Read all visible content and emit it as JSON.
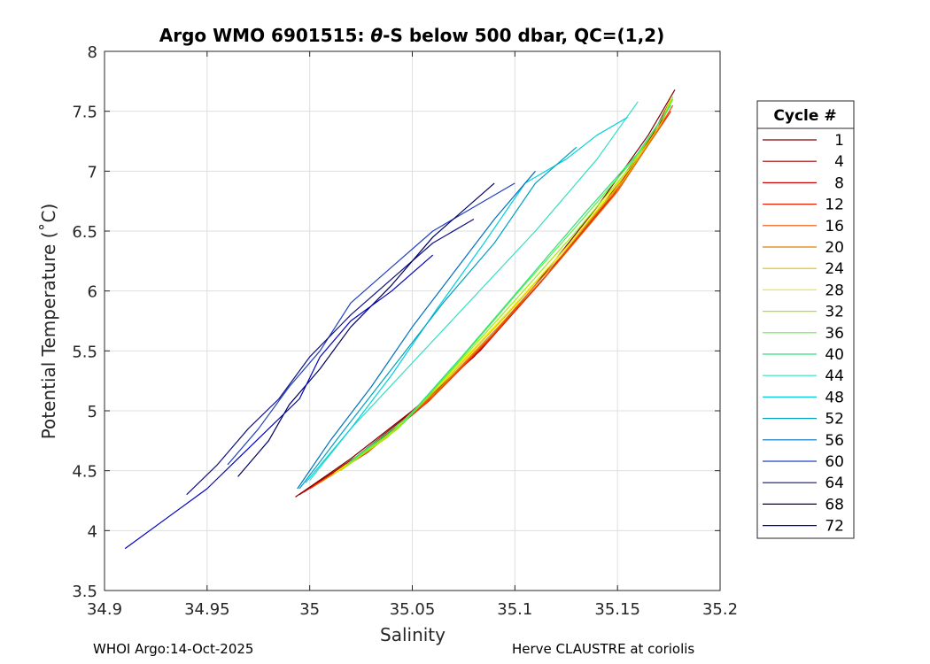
{
  "chart_data": {
    "type": "line",
    "title_prefix": "Argo WMO 6901515: ",
    "title_theta": "θ",
    "title_suffix": "-S below 500 dbar,  QC=(1,2)",
    "xlabel": "Salinity",
    "ylabel": "Potential Temperature (˚C)",
    "xlim": [
      34.9,
      35.2
    ],
    "ylim": [
      3.5,
      8
    ],
    "xticks": [
      34.9,
      34.95,
      35,
      35.05,
      35.1,
      35.15,
      35.2
    ],
    "xtick_labels": [
      "34.9",
      "34.95",
      "35",
      "35.05",
      "35.1",
      "35.15",
      "35.2"
    ],
    "yticks": [
      3.5,
      4,
      4.5,
      5,
      5.5,
      6,
      6.5,
      7,
      7.5,
      8
    ],
    "ytick_labels": [
      "3.5",
      "4",
      "4.5",
      "5",
      "5.5",
      "6",
      "6.5",
      "7",
      "7.5",
      "8"
    ],
    "grid": true,
    "legend_title": "Cycle #",
    "legend_placement": "outside-right",
    "legend": [
      {
        "label": "1",
        "color": "#800000"
      },
      {
        "label": "4",
        "color": "#a00000"
      },
      {
        "label": "8",
        "color": "#cc0000"
      },
      {
        "label": "12",
        "color": "#ee2200"
      },
      {
        "label": "16",
        "color": "#ee5500"
      },
      {
        "label": "20",
        "color": "#e08000"
      },
      {
        "label": "24",
        "color": "#e0c000"
      },
      {
        "label": "28",
        "color": "#f0f000"
      },
      {
        "label": "32",
        "color": "#a0f000"
      },
      {
        "label": "36",
        "color": "#60f040"
      },
      {
        "label": "40",
        "color": "#30e080"
      },
      {
        "label": "44",
        "color": "#30e0c0"
      },
      {
        "label": "48",
        "color": "#00d0e0"
      },
      {
        "label": "52",
        "color": "#00a0c0"
      },
      {
        "label": "56",
        "color": "#0070c0"
      },
      {
        "label": "60",
        "color": "#2040c0"
      },
      {
        "label": "64",
        "color": "#101080"
      },
      {
        "label": "68",
        "color": "#000060"
      },
      {
        "label": "72",
        "color": "#0000c0"
      }
    ],
    "series": [
      {
        "color": "#800000",
        "x": [
          34.993,
          35.02,
          35.05,
          35.08,
          35.11,
          35.14,
          35.165,
          35.178
        ],
        "y": [
          4.28,
          4.6,
          5.0,
          5.45,
          6.05,
          6.7,
          7.3,
          7.68
        ]
      },
      {
        "color": "#a00000",
        "x": [
          34.995,
          35.023,
          35.052,
          35.083,
          35.113,
          35.143,
          35.167,
          35.176
        ],
        "y": [
          4.3,
          4.62,
          5.02,
          5.5,
          6.08,
          6.72,
          7.3,
          7.6
        ]
      },
      {
        "color": "#cc0000",
        "x": [
          34.997,
          35.025,
          35.055,
          35.085,
          35.115,
          35.145,
          35.168,
          35.175
        ],
        "y": [
          4.32,
          4.63,
          5.05,
          5.55,
          6.12,
          6.75,
          7.3,
          7.55
        ]
      },
      {
        "color": "#ee2200",
        "x": [
          35.0,
          35.028,
          35.058,
          35.088,
          35.118,
          35.148,
          35.169,
          35.176
        ],
        "y": [
          4.35,
          4.65,
          5.08,
          5.6,
          6.18,
          6.8,
          7.32,
          7.5
        ]
      },
      {
        "color": "#ee5500",
        "x": [
          35.002,
          35.03,
          35.06,
          35.09,
          35.12,
          35.15,
          35.17,
          35.177
        ],
        "y": [
          4.37,
          4.68,
          5.12,
          5.65,
          6.22,
          6.83,
          7.35,
          7.55
        ]
      },
      {
        "color": "#e08000",
        "x": [
          35.005,
          35.033,
          35.063,
          35.093,
          35.123,
          35.152,
          35.171,
          35.176
        ],
        "y": [
          4.4,
          4.72,
          5.18,
          5.72,
          6.3,
          6.9,
          7.38,
          7.58
        ]
      },
      {
        "color": "#e0c000",
        "x": [
          35.01,
          35.038,
          35.066,
          35.096,
          35.126,
          35.154,
          35.172,
          35.177
        ],
        "y": [
          4.45,
          4.78,
          5.25,
          5.8,
          6.38,
          6.95,
          7.42,
          7.62
        ]
      },
      {
        "color": "#f0f000",
        "x": [
          35.012,
          35.04,
          35.068,
          35.098,
          35.128,
          35.155,
          35.172,
          35.176
        ],
        "y": [
          4.48,
          4.82,
          5.3,
          5.85,
          6.42,
          7.0,
          7.45,
          7.6
        ]
      },
      {
        "color": "#a0f000",
        "x": [
          35.015,
          35.043,
          35.07,
          35.1,
          35.13,
          35.157,
          35.173,
          35.177
        ],
        "y": [
          4.5,
          4.85,
          5.35,
          5.92,
          6.5,
          7.05,
          7.48,
          7.62
        ]
      },
      {
        "color": "#60f040",
        "x": [
          35.018,
          35.046,
          35.072,
          35.102,
          35.132,
          35.158,
          35.174,
          35.177
        ],
        "y": [
          4.55,
          4.9,
          5.4,
          6.0,
          6.58,
          7.1,
          7.5,
          7.6
        ]
      },
      {
        "color": "#30e080",
        "x": [
          35.02,
          35.048,
          35.074,
          35.104,
          35.134,
          35.16,
          35.174,
          35.176
        ],
        "y": [
          4.58,
          4.95,
          5.45,
          6.05,
          6.65,
          7.15,
          7.5,
          7.55
        ]
      },
      {
        "color": "#30e0c0",
        "x": [
          35.0,
          35.02,
          35.05,
          35.08,
          35.11,
          35.13,
          35.14,
          35.16
        ],
        "y": [
          4.42,
          4.85,
          5.4,
          5.95,
          6.5,
          6.9,
          7.1,
          7.58
        ]
      },
      {
        "color": "#00d0e0",
        "x": [
          34.998,
          35.02,
          35.04,
          35.062,
          35.085,
          35.105,
          35.125,
          35.14,
          35.155
        ],
        "y": [
          4.4,
          4.85,
          5.3,
          5.85,
          6.4,
          6.9,
          7.1,
          7.3,
          7.45
        ]
      },
      {
        "color": "#00a0c0",
        "x": [
          34.995,
          35.015,
          35.04,
          35.065,
          35.09,
          35.11,
          35.13
        ],
        "y": [
          4.35,
          4.8,
          5.35,
          5.9,
          6.4,
          6.9,
          7.2
        ]
      },
      {
        "color": "#0070c0",
        "x": [
          34.994,
          35.01,
          35.03,
          35.05,
          35.07,
          35.09,
          35.11
        ],
        "y": [
          4.35,
          4.75,
          5.2,
          5.7,
          6.15,
          6.6,
          7.0
        ]
      },
      {
        "color": "#2040c0",
        "x": [
          34.96,
          34.975,
          34.99,
          35.005,
          35.02,
          35.04,
          35.06,
          35.08,
          35.1
        ],
        "y": [
          4.55,
          4.85,
          5.2,
          5.5,
          5.9,
          6.2,
          6.5,
          6.7,
          6.9
        ]
      },
      {
        "color": "#101080",
        "x": [
          34.94,
          34.955,
          34.97,
          34.985,
          35.0,
          35.02,
          35.04,
          35.06,
          35.08
        ],
        "y": [
          4.3,
          4.55,
          4.85,
          5.1,
          5.45,
          5.8,
          6.1,
          6.4,
          6.6
        ]
      },
      {
        "color": "#000060",
        "x": [
          34.965,
          34.98,
          34.99,
          35.005,
          35.02,
          35.04,
          35.06,
          35.09
        ],
        "y": [
          4.45,
          4.75,
          5.05,
          5.35,
          5.7,
          6.05,
          6.45,
          6.9
        ]
      },
      {
        "color": "#0000c0",
        "x": [
          34.91,
          34.93,
          34.95,
          34.965,
          34.98,
          34.995,
          35.005,
          35.02,
          35.04,
          35.06
        ],
        "y": [
          3.85,
          4.1,
          4.35,
          4.6,
          4.85,
          5.1,
          5.45,
          5.75,
          6.0,
          6.3
        ]
      }
    ]
  },
  "footer": {
    "left": "WHOI Argo:14-Oct-2025",
    "right": "Herve CLAUSTRE at coriolis"
  }
}
